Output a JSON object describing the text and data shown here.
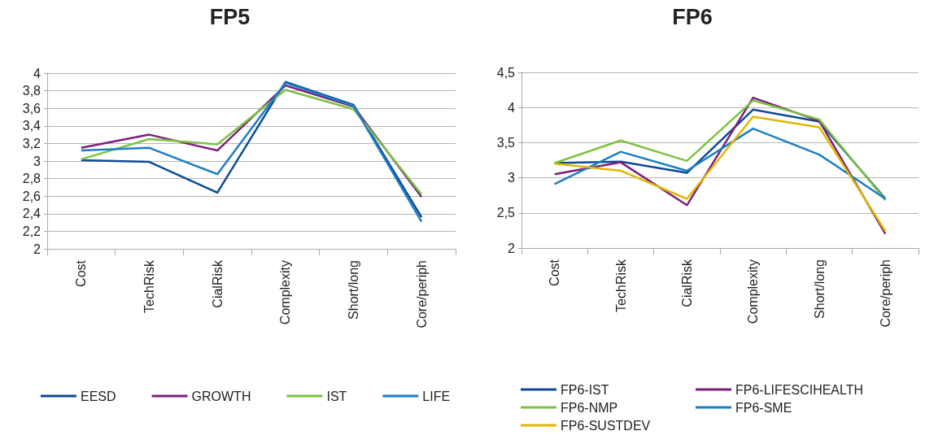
{
  "chart_data": [
    {
      "type": "line",
      "title": "FP5",
      "categories": [
        "Cost",
        "TechRisk",
        "CialRisk",
        "Complexity",
        "Short/long",
        "Core/periph"
      ],
      "ylim": [
        2,
        4
      ],
      "yticks": [
        2,
        {
          "value": 2.2,
          "label": "2,2"
        },
        {
          "value": 2.4,
          "label": "2,4"
        },
        {
          "value": 2.6,
          "label": "2,6"
        },
        {
          "value": 2.8,
          "label": "2,8"
        },
        3,
        {
          "value": 3.2,
          "label": "3,2"
        },
        {
          "value": 3.4,
          "label": "3,4"
        },
        {
          "value": 3.6,
          "label": "3,6"
        },
        {
          "value": 3.8,
          "label": "3,8"
        },
        4
      ],
      "grid": "y",
      "legend": "bottom",
      "marker": "none",
      "line_style": "solid",
      "series": [
        {
          "name": "EESD",
          "color": "#0d4a96",
          "values": [
            3.01,
            2.99,
            2.64,
            3.9,
            3.64,
            2.36
          ]
        },
        {
          "name": "GROWTH",
          "color": "#7b1f7f",
          "values": [
            3.15,
            3.3,
            3.12,
            3.86,
            3.62,
            2.59
          ]
        },
        {
          "name": "IST",
          "color": "#7dc242",
          "values": [
            3.02,
            3.25,
            3.19,
            3.81,
            3.59,
            2.62
          ]
        },
        {
          "name": "LIFE",
          "color": "#1b7ec4",
          "values": [
            3.12,
            3.15,
            2.85,
            3.89,
            3.63,
            2.31
          ]
        }
      ]
    },
    {
      "type": "line",
      "title": "FP6",
      "categories": [
        "Cost",
        "TechRisk",
        "CialRisk",
        "Complexity",
        "Short/long",
        "Core/periph"
      ],
      "ylim": [
        2,
        4.5
      ],
      "yticks": [
        2,
        {
          "value": 2.5,
          "label": "2,5"
        },
        3,
        {
          "value": 3.5,
          "label": "3,5"
        },
        4,
        {
          "value": 4.5,
          "label": "4,5"
        }
      ],
      "grid": "y",
      "legend": "bottom",
      "marker": "none",
      "line_style": "solid",
      "series": [
        {
          "name": "FP6-IST",
          "color": "#0d4a96",
          "values": [
            3.21,
            3.23,
            3.07,
            3.97,
            3.8,
            2.7
          ]
        },
        {
          "name": "FP6-LIFESCIHEALTH",
          "color": "#7b1f7f",
          "values": [
            3.05,
            3.22,
            2.61,
            4.14,
            3.81,
            2.2
          ]
        },
        {
          "name": "FP6-NMP",
          "color": "#7dc242",
          "values": [
            3.21,
            3.53,
            3.24,
            4.1,
            3.83,
            2.68
          ]
        },
        {
          "name": "FP6-SME",
          "color": "#1b7ec4",
          "values": [
            2.91,
            3.37,
            3.1,
            3.7,
            3.33,
            2.7
          ]
        },
        {
          "name": "FP6-SUSTDEV",
          "color": "#e0b800",
          "values": [
            3.2,
            3.1,
            2.7,
            3.87,
            3.72,
            2.24
          ]
        }
      ]
    }
  ]
}
